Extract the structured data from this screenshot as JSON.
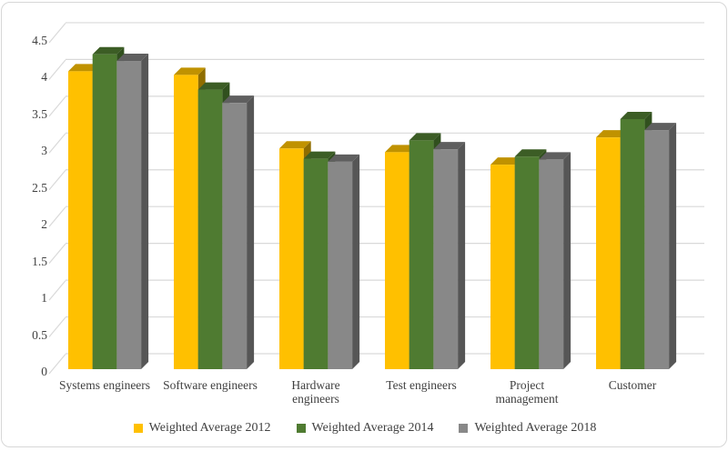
{
  "chart_data": {
    "type": "bar",
    "subtype": "3d-clustered-column",
    "title": "",
    "xlabel": "",
    "ylabel": "",
    "categories": [
      "Systems engineers",
      "Software engineers",
      "Hardware engineers",
      "Test engineers",
      "Project management",
      "Customer"
    ],
    "categories_display": [
      "Systems engineers",
      "Software engineers",
      "Hardware\nengineers",
      "Test engineers",
      "Project\nmanagement",
      "Customer"
    ],
    "series": [
      {
        "name": "Weighted Average 2012",
        "values": [
          4.05,
          4.0,
          3.0,
          2.95,
          2.78,
          3.15
        ],
        "color": "#FFC000",
        "color_top": "#C09200",
        "color_side": "#8F6D00"
      },
      {
        "name": "Weighted Average 2014",
        "values": [
          4.28,
          3.8,
          2.86,
          3.11,
          2.89,
          3.4
        ],
        "color": "#4F7B31",
        "color_top": "#3C5D25",
        "color_side": "#31501E"
      },
      {
        "name": "Weighted Average 2018",
        "values": [
          4.19,
          3.62,
          2.82,
          2.99,
          2.85,
          3.25
        ],
        "color": "#888888",
        "color_top": "#5F5F5F",
        "color_side": "#565656"
      }
    ],
    "y_axis": {
      "min": 0,
      "max": 4.5,
      "step": 0.5,
      "tick_labels": [
        "0",
        "0.5",
        "1",
        "1.5",
        "2",
        "2.5",
        "3",
        "3.5",
        "4",
        "4.5"
      ]
    },
    "grid": true,
    "legend_position": "bottom",
    "colors": {
      "background": "#FFFFFF",
      "border": "#D7D7D7",
      "gridline": "#D9D9D9",
      "text": "#404040"
    }
  }
}
